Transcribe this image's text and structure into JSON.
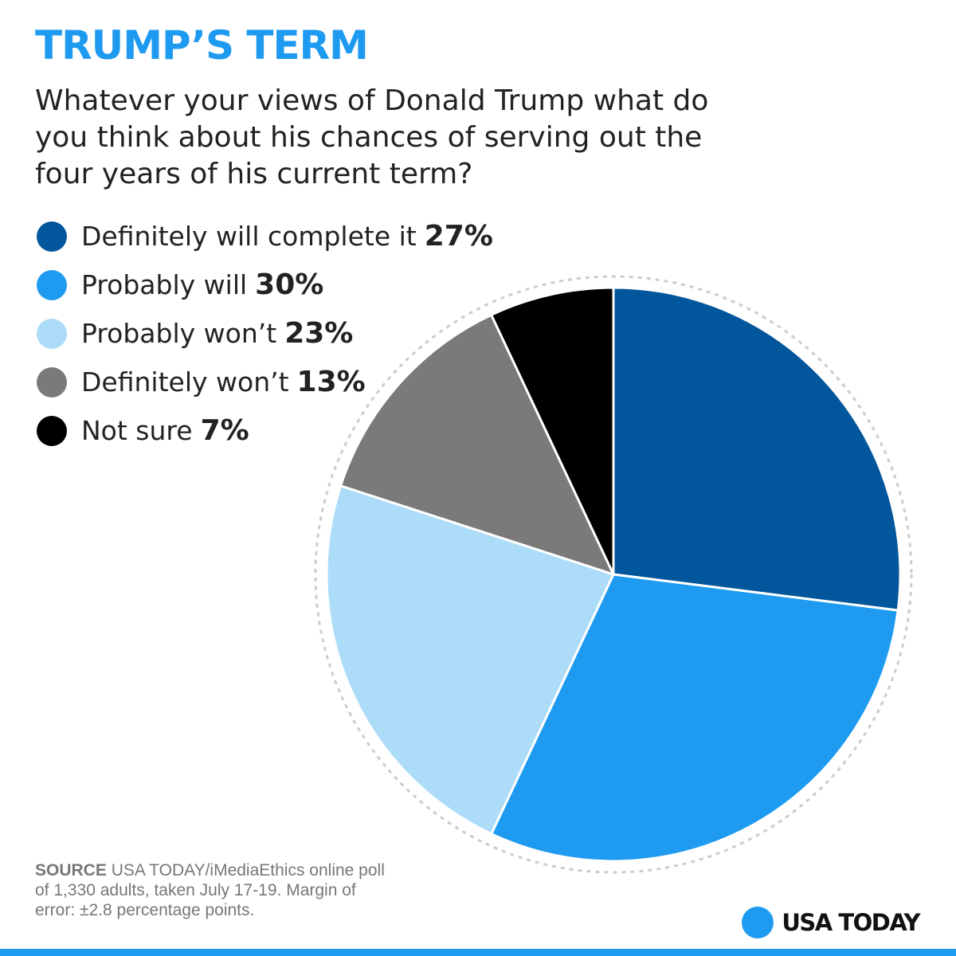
{
  "chart_data": {
    "type": "pie",
    "title": "TRUMP’S TERM",
    "subtitle": "Whatever your views of Donald Trump what do you think about his chances of serving out the four years of his current term?",
    "categories": [
      "Definitely will complete it",
      "Probably will",
      "Probably won’t",
      "Definitely won’t",
      "Not sure"
    ],
    "values": [
      27,
      30,
      23,
      13,
      7
    ],
    "value_labels": [
      "27%",
      "30%",
      "23%",
      "13%",
      "7%"
    ],
    "colors": [
      "#02569b",
      "#1e9bf0",
      "#addcf9",
      "#7a7a7a",
      "#000000"
    ],
    "legend_position": "top-left"
  },
  "source": {
    "label": "SOURCE",
    "text": "USA TODAY/iMediaEthics online poll of 1,330 adults, taken July 17-19. Margin of error: ±2.8 percentage points."
  },
  "brand": {
    "name": "USA TODAY",
    "color": "#1e9bf0"
  }
}
